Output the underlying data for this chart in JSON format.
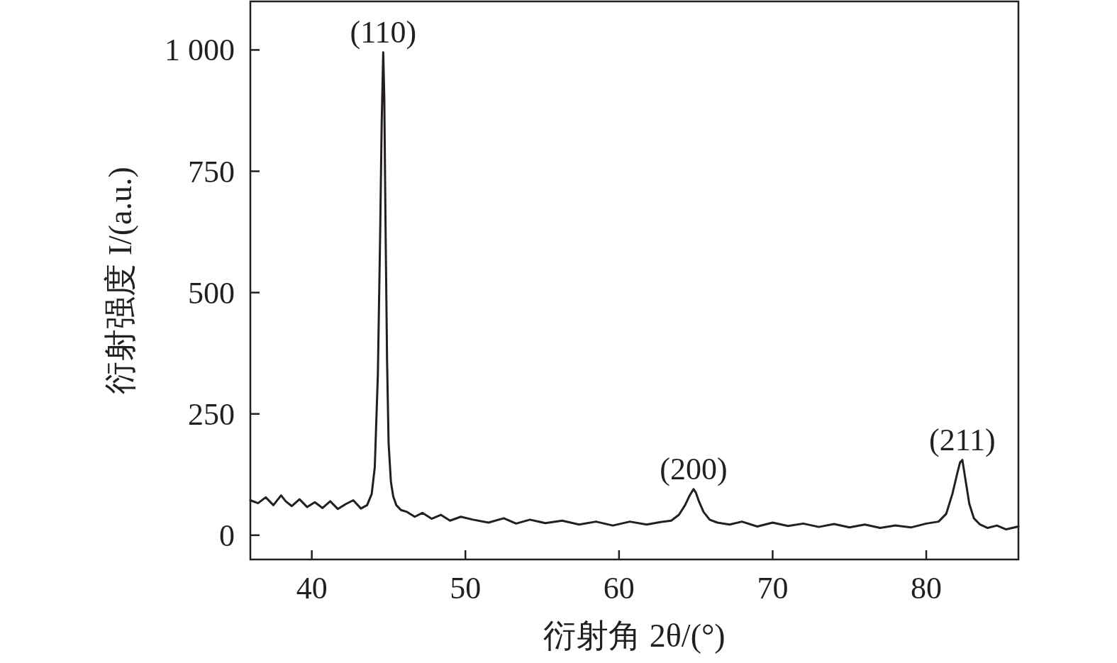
{
  "chart_data": {
    "type": "line",
    "xlabel": "衍射角 2θ/(°)",
    "ylabel": "衍射强度 I/(a.u.)",
    "xlim": [
      36,
      86
    ],
    "xticks": [
      40,
      50,
      60,
      70,
      80
    ],
    "ylim": [
      -50,
      1100
    ],
    "yticks": [
      0,
      250,
      500,
      {
        "value": 1000,
        "label": "1 000"
      },
      750
    ],
    "grid": false,
    "marker": "none",
    "line_style": "solid",
    "series": [
      {
        "color": "#231f20",
        "x": [
          36.0,
          36.5,
          37.0,
          37.5,
          38.0,
          38.3,
          38.7,
          39.2,
          39.7,
          40.2,
          40.7,
          41.2,
          41.7,
          42.2,
          42.7,
          43.2,
          43.6,
          43.9,
          44.1,
          44.3,
          44.45,
          44.55,
          44.65,
          44.72,
          44.8,
          44.9,
          45.0,
          45.15,
          45.3,
          45.5,
          45.8,
          46.2,
          46.7,
          47.2,
          47.8,
          48.4,
          49.0,
          49.7,
          50.5,
          51.5,
          52.5,
          53.3,
          54.2,
          55.2,
          56.3,
          57.4,
          58.5,
          59.6,
          60.7,
          61.8,
          62.7,
          63.4,
          63.9,
          64.3,
          64.6,
          64.85,
          65.0,
          65.2,
          65.5,
          65.9,
          66.4,
          67.2,
          68.0,
          69.0,
          70.0,
          71.0,
          72.0,
          73.0,
          74.0,
          75.0,
          76.0,
          77.0,
          78.0,
          79.0,
          80.0,
          80.8,
          81.3,
          81.7,
          82.0,
          82.2,
          82.35,
          82.55,
          82.8,
          83.1,
          83.5,
          84.0,
          84.6,
          85.2,
          86.0
        ],
        "values": [
          72,
          66,
          78,
          62,
          82,
          70,
          60,
          74,
          58,
          68,
          56,
          70,
          54,
          64,
          72,
          55,
          62,
          85,
          140,
          330,
          620,
          850,
          995,
          900,
          640,
          360,
          190,
          110,
          80,
          62,
          52,
          48,
          38,
          46,
          34,
          42,
          30,
          38,
          32,
          26,
          35,
          24,
          32,
          25,
          30,
          22,
          28,
          20,
          28,
          22,
          27,
          30,
          42,
          62,
          82,
          95,
          88,
          70,
          48,
          32,
          26,
          22,
          28,
          18,
          26,
          19,
          24,
          17,
          23,
          16,
          22,
          15,
          20,
          16,
          24,
          28,
          44,
          85,
          125,
          150,
          155,
          115,
          65,
          35,
          22,
          15,
          20,
          12,
          18
        ]
      }
    ],
    "annotations": [
      {
        "text": "(110)",
        "x": 44.65,
        "y": 995
      },
      {
        "text": "(200)",
        "x": 64.85,
        "y": 95
      },
      {
        "text": "(211)",
        "x": 82.35,
        "y": 155
      }
    ]
  }
}
